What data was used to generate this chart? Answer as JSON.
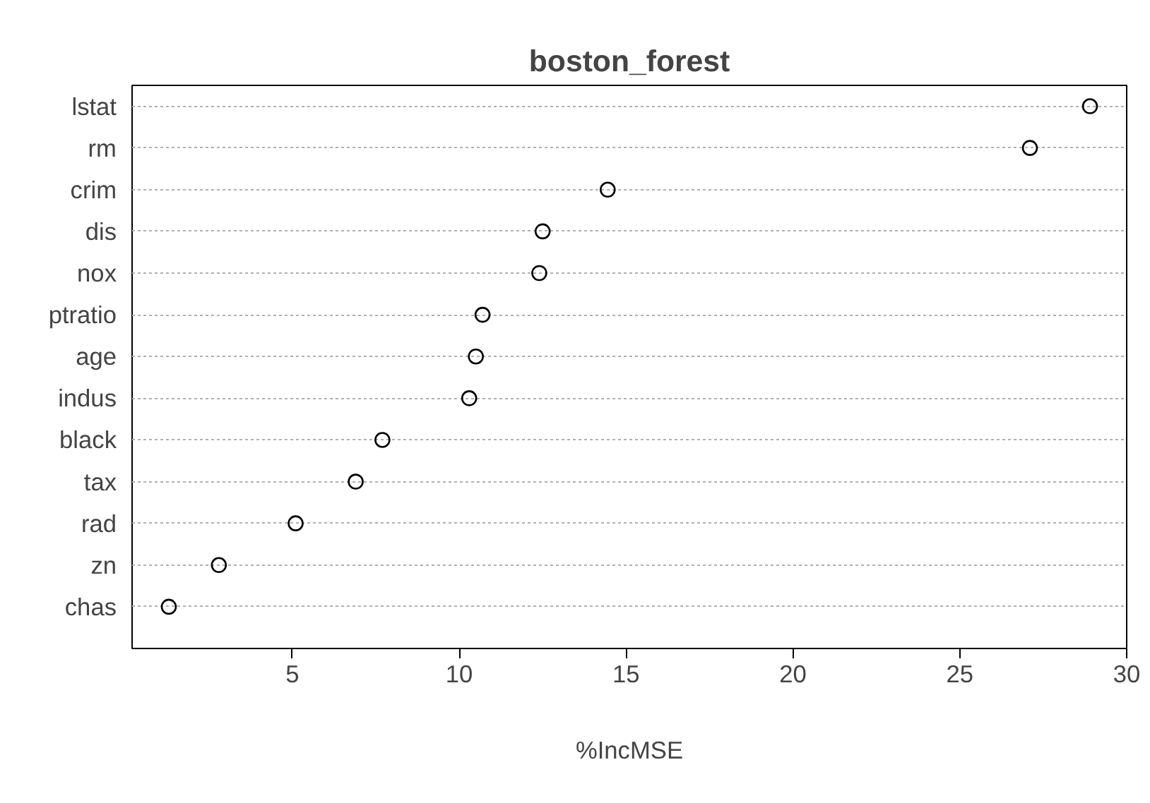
{
  "chart_data": {
    "type": "scatter",
    "orientation": "horizontal",
    "title": "boston_forest",
    "xlabel": "%IncMSE",
    "categories": [
      "lstat",
      "rm",
      "crim",
      "dis",
      "nox",
      "ptratio",
      "age",
      "indus",
      "black",
      "tax",
      "rad",
      "zn",
      "chas"
    ],
    "values": [
      28.9,
      27.1,
      14.45,
      12.5,
      12.4,
      10.7,
      10.5,
      10.3,
      7.7,
      6.9,
      5.1,
      2.8,
      1.3
    ],
    "color": "#000000",
    "marker": "circle",
    "grid": "y",
    "xlim": [
      0.2,
      30.0
    ],
    "xticks": [
      5,
      10,
      15,
      20,
      25,
      30
    ]
  }
}
